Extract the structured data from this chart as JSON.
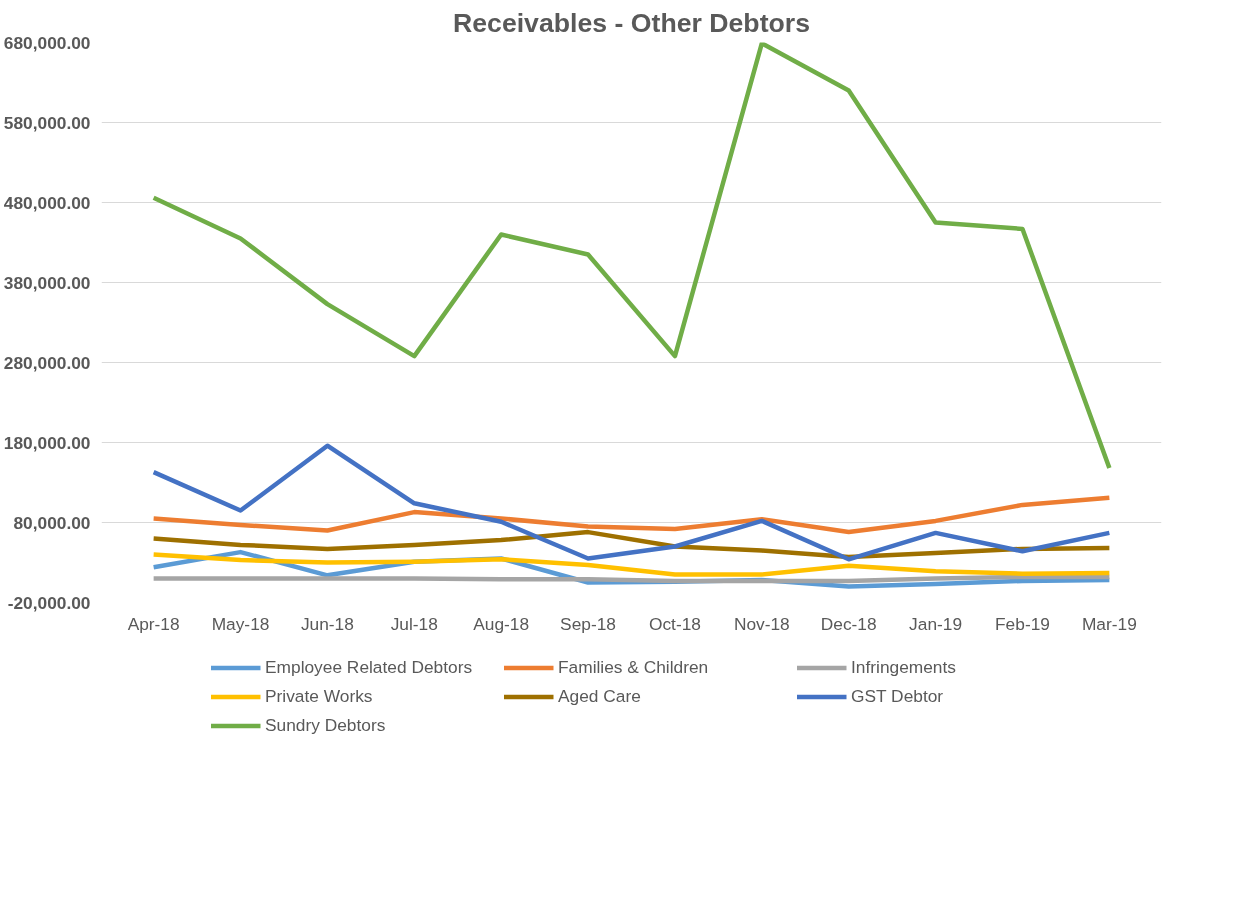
{
  "chart_data": {
    "type": "line",
    "title": "Receivables - Other Debtors",
    "categories": [
      "Apr-18",
      "May-18",
      "Jun-18",
      "Jul-18",
      "Aug-18",
      "Sep-18",
      "Oct-18",
      "Nov-18",
      "Dec-18",
      "Jan-19",
      "Feb-19",
      "Mar-19"
    ],
    "series": [
      {
        "name": "Employee Related Debtors",
        "color": "#5b9bd5",
        "values": [
          24000,
          43000,
          14000,
          31000,
          35000,
          5000,
          6000,
          8000,
          0,
          3000,
          7000,
          8000
        ]
      },
      {
        "name": "Families & Children",
        "color": "#ed7d31",
        "values": [
          85000,
          77000,
          70000,
          93000,
          85000,
          75000,
          72000,
          84000,
          68000,
          82000,
          102000,
          111000
        ]
      },
      {
        "name": "Infringements",
        "color": "#a5a5a5",
        "values": [
          10000,
          10000,
          10000,
          10000,
          9000,
          9000,
          7000,
          7000,
          7000,
          10000,
          12000,
          12000
        ]
      },
      {
        "name": "Private Works",
        "color": "#ffc000",
        "values": [
          40000,
          33000,
          30000,
          31000,
          34000,
          27000,
          15000,
          15000,
          26000,
          19000,
          16000,
          17000
        ]
      },
      {
        "name": "Aged Care",
        "color": "#9e7000",
        "values": [
          60000,
          52000,
          47000,
          52000,
          58000,
          68000,
          50000,
          45000,
          37000,
          42000,
          47000,
          48000
        ]
      },
      {
        "name": "GST Debtor",
        "color": "#4472c4",
        "values": [
          143000,
          95000,
          176000,
          104000,
          81000,
          35000,
          50000,
          82000,
          34000,
          67000,
          44000,
          67000
        ]
      },
      {
        "name": "Sundry Debtors",
        "color": "#70ad47",
        "values": [
          486000,
          435000,
          353000,
          288000,
          440000,
          415000,
          288000,
          679000,
          620000,
          455000,
          447000,
          148000
        ]
      }
    ],
    "ylim": [
      -20000,
      680000
    ],
    "yticks": [
      {
        "value": -20000,
        "label": "-20,000.00"
      },
      {
        "value": 80000,
        "label": "80,000.00"
      },
      {
        "value": 180000,
        "label": "180,000.00"
      },
      {
        "value": 280000,
        "label": "280,000.00"
      },
      {
        "value": 380000,
        "label": "380,000.00"
      },
      {
        "value": 480000,
        "label": "480,000.00"
      },
      {
        "value": 580000,
        "label": "580,000.00"
      },
      {
        "value": 680000,
        "label": "680,000.00"
      }
    ],
    "grid": "y",
    "legend": "bottom",
    "marker": "none",
    "line_style": "solid"
  }
}
